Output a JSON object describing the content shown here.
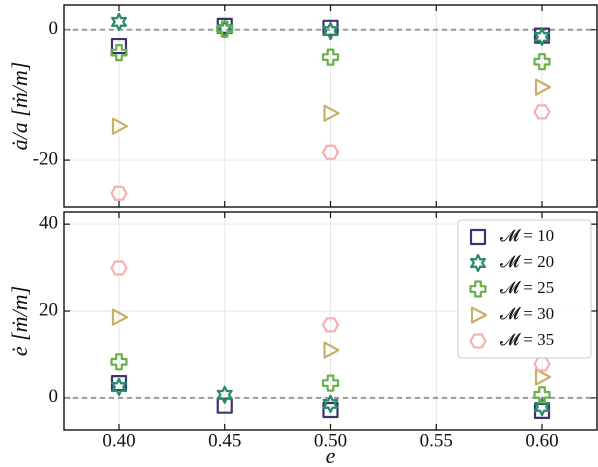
{
  "chart_data": [
    {
      "type": "scatter",
      "ylabel": "ȧ/a [ṁ/m]",
      "x": [
        0.4,
        0.45,
        0.5,
        0.6
      ],
      "series": [
        {
          "color": "#3b3470",
          "marker": "square",
          "values": [
            -2.5,
            0.6,
            0.3,
            -0.9
          ]
        },
        {
          "color": "#2a8a6a",
          "marker": "star",
          "values": [
            1.2,
            0.1,
            -0.2,
            -1.1
          ]
        },
        {
          "color": "#6ab04c",
          "marker": "plus",
          "values": [
            -3.5,
            0.1,
            -4.2,
            -4.9
          ]
        },
        {
          "color": "#c8b068",
          "marker": "triangle",
          "values": [
            -14.8,
            null,
            -12.8,
            -8.8
          ]
        },
        {
          "color": "#f4b0b0",
          "marker": "hexagon",
          "values": [
            -25.1,
            null,
            -18.8,
            -12.6
          ]
        }
      ],
      "xlim": [
        0.374,
        0.626
      ],
      "ylim": [
        -27.2,
        3.8
      ],
      "xticks": [
        0.4,
        0.45,
        0.5,
        0.55,
        0.6
      ],
      "yticks": [
        -20,
        0
      ],
      "grid": true,
      "reference_line": 0
    },
    {
      "type": "scatter",
      "xlabel": "e",
      "ylabel": "ė [ṁ/m]",
      "x": [
        0.4,
        0.45,
        0.5,
        0.6
      ],
      "series": [
        {
          "name": "𝓜 = 10",
          "color": "#3b3470",
          "marker": "square",
          "values": [
            3.4,
            -1.8,
            -2.8,
            -3.0
          ]
        },
        {
          "name": "𝓜 = 20",
          "color": "#2a8a6a",
          "marker": "star",
          "values": [
            2.5,
            0.7,
            -1.4,
            -2.1
          ]
        },
        {
          "name": "𝓜 = 25",
          "color": "#6ab04c",
          "marker": "plus",
          "values": [
            8.3,
            null,
            3.4,
            0.7
          ]
        },
        {
          "name": "𝓜 = 30",
          "color": "#c8b068",
          "marker": "triangle",
          "values": [
            18.6,
            null,
            11.0,
            4.8
          ]
        },
        {
          "name": "𝓜 = 35",
          "color": "#f4b0b0",
          "marker": "hexagon",
          "values": [
            29.9,
            null,
            16.8,
            7.8
          ]
        }
      ],
      "xlim": [
        0.374,
        0.626
      ],
      "ylim": [
        -7.4,
        42.8
      ],
      "xticks": [
        {
          "value": 0.4,
          "label": "0.40"
        },
        {
          "value": 0.45,
          "label": "0.45"
        },
        {
          "value": 0.5,
          "label": "0.50"
        },
        {
          "value": 0.55,
          "label": "0.55"
        },
        {
          "value": 0.6,
          "label": "0.60"
        }
      ],
      "yticks": [
        0,
        20,
        40
      ],
      "grid": true,
      "reference_line": 0,
      "legend": "upper right"
    }
  ]
}
